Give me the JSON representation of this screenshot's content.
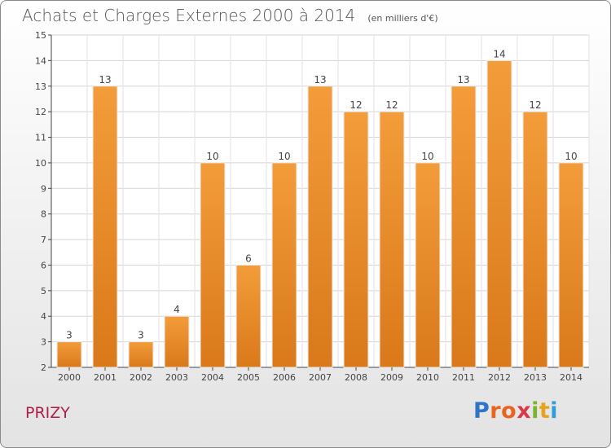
{
  "chart_data": {
    "type": "bar",
    "title": "Achats et Charges Externes 2000 à 2014",
    "subtitle": "(en milliers d'€)",
    "categories": [
      "2000",
      "2001",
      "2002",
      "2003",
      "2004",
      "2005",
      "2006",
      "2007",
      "2008",
      "2009",
      "2010",
      "2011",
      "2012",
      "2013",
      "2014"
    ],
    "values": [
      3,
      13,
      3,
      4,
      10,
      6,
      10,
      13,
      12,
      12,
      10,
      13,
      14,
      12,
      10
    ],
    "ylim": [
      2,
      15
    ],
    "yticks": [
      2,
      3,
      4,
      5,
      6,
      7,
      8,
      9,
      10,
      11,
      12,
      13,
      14,
      15
    ],
    "grid": true,
    "bar_color": "#f39c3a",
    "bar_color_dark": "#d9791a"
  },
  "footer": {
    "town": "PRIZY",
    "logo": "Proxiti",
    "logo_colors": [
      "#2e75c6",
      "#e8641e",
      "#e8641e",
      "#d93a4a",
      "#79b42c",
      "#e8a31e",
      "#2e9fd6"
    ]
  }
}
